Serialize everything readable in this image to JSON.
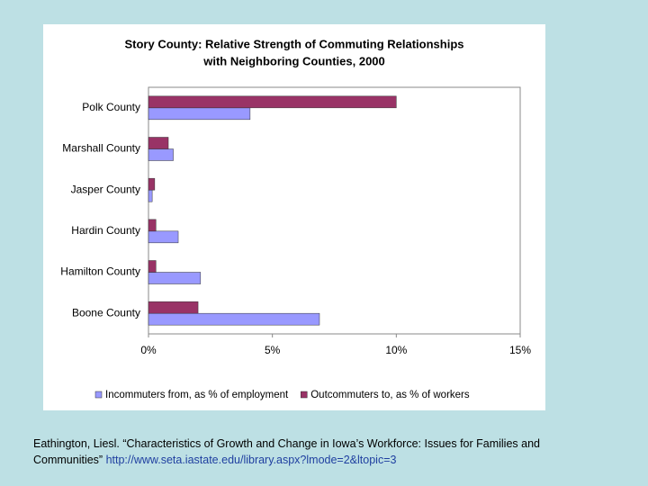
{
  "chart_data": {
    "type": "hbar",
    "title": [
      "Story County:  Relative Strength of Commuting Relationships",
      "with Neighboring Counties,  2000"
    ],
    "categories": [
      "Polk County",
      "Marshall County",
      "Jasper County",
      "Hardin County",
      "Hamilton County",
      "Boone County"
    ],
    "series": [
      {
        "name": "Incommuters from, as % of employment",
        "color": "#9999ff",
        "values": [
          4.1,
          1.0,
          0.15,
          1.2,
          2.1,
          6.9
        ]
      },
      {
        "name": "Outcommuters to, as % of workers",
        "color": "#993366",
        "values": [
          10.0,
          0.8,
          0.25,
          0.3,
          0.3,
          2.0
        ]
      }
    ],
    "xlim": [
      0,
      15
    ],
    "xticks": [
      {
        "value": 0,
        "label": "0%"
      },
      {
        "value": 5,
        "label": "5%"
      },
      {
        "value": 10,
        "label": "10%"
      },
      {
        "value": 15,
        "label": "15%"
      }
    ],
    "legend": "bottom"
  },
  "citation": {
    "text": "Eathington, Liesl. “Characteristics of Growth and Change in Iowa’s Workforce: Issues for Families and Communities” ",
    "url": "http://www.seta.iastate.edu/library.aspx?lmode=2&ltopic=3"
  }
}
